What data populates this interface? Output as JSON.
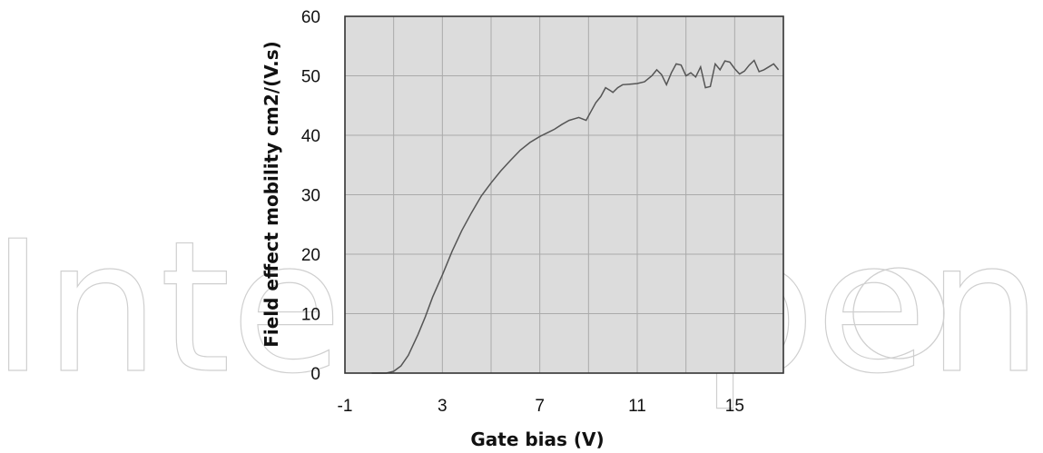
{
  "watermark": {
    "text": "IntechOpen"
  },
  "chart_data": {
    "type": "line",
    "xlabel": "Gate bias (V)",
    "ylabel": "Field effect mobility cm2/(V.s)",
    "xlim": [
      -1,
      17
    ],
    "ylim": [
      0,
      60
    ],
    "xticks": [
      "-1",
      "3",
      "7",
      "11",
      "15"
    ],
    "yticks": [
      "0",
      "10",
      "20",
      "30",
      "40",
      "50",
      "60"
    ],
    "xtick_values": [
      -1,
      3,
      7,
      11,
      15
    ],
    "ytick_values": [
      0,
      10,
      20,
      30,
      40,
      50,
      60
    ],
    "x_gridlines": [
      -1,
      1,
      3,
      5,
      7,
      9,
      11,
      13,
      15,
      17
    ],
    "grid": true,
    "background": "#dcdcdc",
    "line_color": "#555555",
    "series": [
      {
        "x": [
          0.1,
          0.4,
          0.7,
          1.0,
          1.3,
          1.6,
          2.0,
          2.3,
          2.6,
          3.0,
          3.4,
          3.8,
          4.2,
          4.6,
          5.0,
          5.4,
          5.8,
          6.2,
          6.6,
          7.0,
          7.4,
          7.6,
          7.9,
          8.2,
          8.6,
          8.9,
          9.1,
          9.3,
          9.5,
          9.7,
          9.9,
          10.0,
          10.2,
          10.4,
          10.7,
          11.0,
          11.3,
          11.6,
          11.8,
          12.0,
          12.2,
          12.4,
          12.6,
          12.8,
          13.0,
          13.2,
          13.4,
          13.6,
          13.8,
          14.0,
          14.2,
          14.4,
          14.6,
          14.8,
          15.0,
          15.2,
          15.4,
          15.6,
          15.8,
          16.0,
          16.2,
          16.4,
          16.6,
          16.8
        ],
        "y": [
          0.0,
          0.0,
          0.0,
          0.3,
          1.2,
          3.0,
          6.5,
          9.5,
          12.8,
          16.5,
          20.5,
          24.0,
          27.0,
          29.8,
          32.0,
          34.0,
          35.8,
          37.5,
          38.8,
          39.8,
          40.6,
          41.0,
          41.8,
          42.5,
          43.0,
          42.5,
          44.0,
          45.5,
          46.5,
          48.0,
          47.5,
          47.2,
          48.0,
          48.5,
          48.6,
          48.7,
          49.0,
          50.0,
          51.0,
          50.2,
          48.5,
          50.5,
          52.0,
          51.8,
          50.0,
          50.5,
          49.8,
          51.5,
          48.0,
          48.2,
          52.0,
          51.0,
          52.5,
          52.3,
          51.2,
          50.3,
          50.8,
          51.8,
          52.6,
          50.7,
          51.0,
          51.5,
          52.0,
          51.0
        ]
      }
    ]
  }
}
